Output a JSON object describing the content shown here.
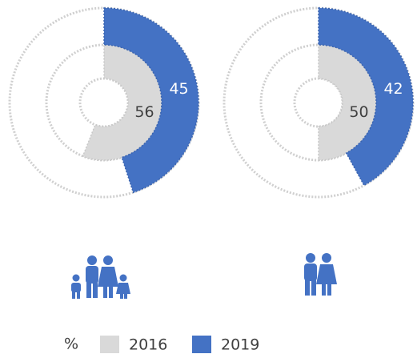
{
  "chart_data": {
    "type": "radial_bar",
    "categories": [
      null,
      null
    ],
    "series": [
      {
        "name": "2016",
        "color": "#d9d9d9",
        "values": [
          56,
          50
        ]
      },
      {
        "name": "2019",
        "color": "#4472c4",
        "values": [
          45,
          42
        ]
      }
    ],
    "legend_title": "%",
    "scale_max": 100
  }
}
